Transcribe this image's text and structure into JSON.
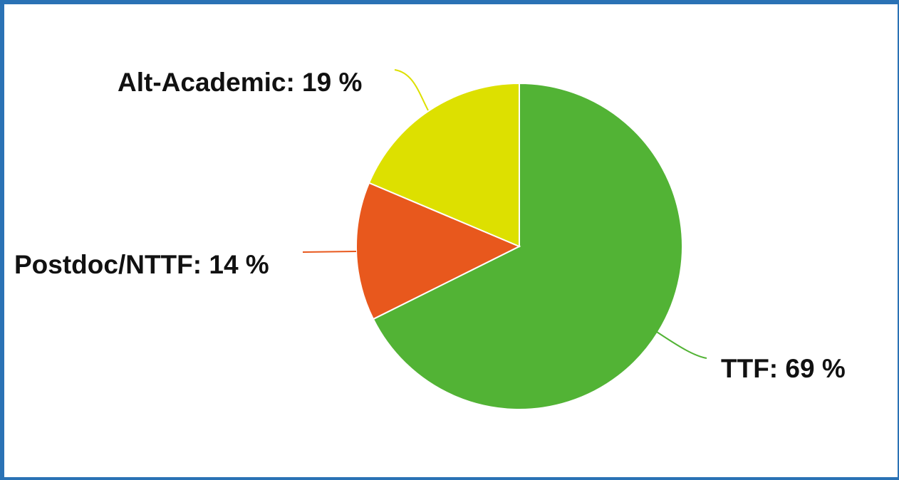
{
  "chart_data": {
    "type": "pie",
    "title": "",
    "slices": [
      {
        "label": "TTF",
        "value": 69,
        "display": "TTF: 69 %",
        "color": "#52b335"
      },
      {
        "label": "Postdoc/NTTF",
        "value": 14,
        "display": "Postdoc/NTTF: 14 %",
        "color": "#e8581d"
      },
      {
        "label": "Alt-Academic",
        "value": 19,
        "display": "Alt-Academic: 19 %",
        "color": "#dde000"
      }
    ],
    "legend": "none",
    "label_style": "callout-lines"
  },
  "frame": {
    "border_color": "#2a72b5"
  }
}
